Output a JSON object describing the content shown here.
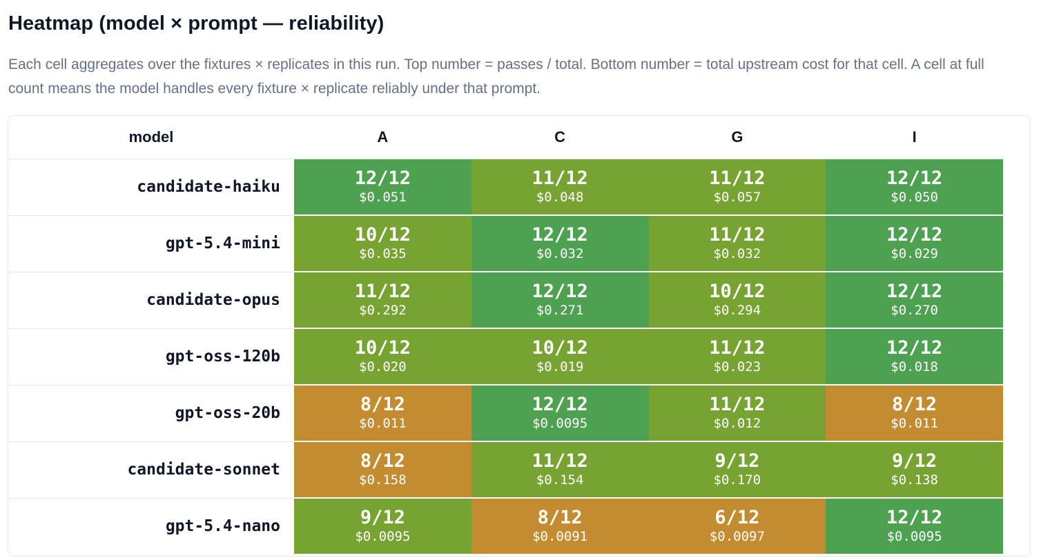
{
  "header": {
    "title": "Heatmap (model × prompt — reliability)",
    "description": "Each cell aggregates over the fixtures × replicates in this run. Top number = passes / total. Bottom number = total upstream cost for that cell. A cell at full count means the model handles every fixture × replicate reliably under that prompt."
  },
  "colors": {
    "full": "#4ea151",
    "high": "#76a332",
    "low": "#c38c30"
  },
  "chart_data": {
    "type": "heatmap",
    "row_header": "model",
    "columns": [
      "A",
      "C",
      "G",
      "I"
    ],
    "rows": [
      {
        "model": "candidate-haiku",
        "cells": [
          {
            "passes": "12/12",
            "cost": "$0.051",
            "level": "full"
          },
          {
            "passes": "11/12",
            "cost": "$0.048",
            "level": "high"
          },
          {
            "passes": "11/12",
            "cost": "$0.057",
            "level": "high"
          },
          {
            "passes": "12/12",
            "cost": "$0.050",
            "level": "full"
          }
        ]
      },
      {
        "model": "gpt-5.4-mini",
        "cells": [
          {
            "passes": "10/12",
            "cost": "$0.035",
            "level": "high"
          },
          {
            "passes": "12/12",
            "cost": "$0.032",
            "level": "full"
          },
          {
            "passes": "11/12",
            "cost": "$0.032",
            "level": "high"
          },
          {
            "passes": "12/12",
            "cost": "$0.029",
            "level": "full"
          }
        ]
      },
      {
        "model": "candidate-opus",
        "cells": [
          {
            "passes": "11/12",
            "cost": "$0.292",
            "level": "high"
          },
          {
            "passes": "12/12",
            "cost": "$0.271",
            "level": "full"
          },
          {
            "passes": "10/12",
            "cost": "$0.294",
            "level": "high"
          },
          {
            "passes": "12/12",
            "cost": "$0.270",
            "level": "full"
          }
        ]
      },
      {
        "model": "gpt-oss-120b",
        "cells": [
          {
            "passes": "10/12",
            "cost": "$0.020",
            "level": "high"
          },
          {
            "passes": "10/12",
            "cost": "$0.019",
            "level": "high"
          },
          {
            "passes": "11/12",
            "cost": "$0.023",
            "level": "high"
          },
          {
            "passes": "12/12",
            "cost": "$0.018",
            "level": "full"
          }
        ]
      },
      {
        "model": "gpt-oss-20b",
        "cells": [
          {
            "passes": "8/12",
            "cost": "$0.011",
            "level": "low"
          },
          {
            "passes": "12/12",
            "cost": "$0.0095",
            "level": "full"
          },
          {
            "passes": "11/12",
            "cost": "$0.012",
            "level": "high"
          },
          {
            "passes": "8/12",
            "cost": "$0.011",
            "level": "low"
          }
        ]
      },
      {
        "model": "candidate-sonnet",
        "cells": [
          {
            "passes": "8/12",
            "cost": "$0.158",
            "level": "low"
          },
          {
            "passes": "11/12",
            "cost": "$0.154",
            "level": "high"
          },
          {
            "passes": "9/12",
            "cost": "$0.170",
            "level": "high"
          },
          {
            "passes": "9/12",
            "cost": "$0.138",
            "level": "high"
          }
        ]
      },
      {
        "model": "gpt-5.4-nano",
        "cells": [
          {
            "passes": "9/12",
            "cost": "$0.0095",
            "level": "high"
          },
          {
            "passes": "8/12",
            "cost": "$0.0091",
            "level": "low"
          },
          {
            "passes": "6/12",
            "cost": "$0.0097",
            "level": "low"
          },
          {
            "passes": "12/12",
            "cost": "$0.0095",
            "level": "full"
          }
        ]
      }
    ]
  }
}
